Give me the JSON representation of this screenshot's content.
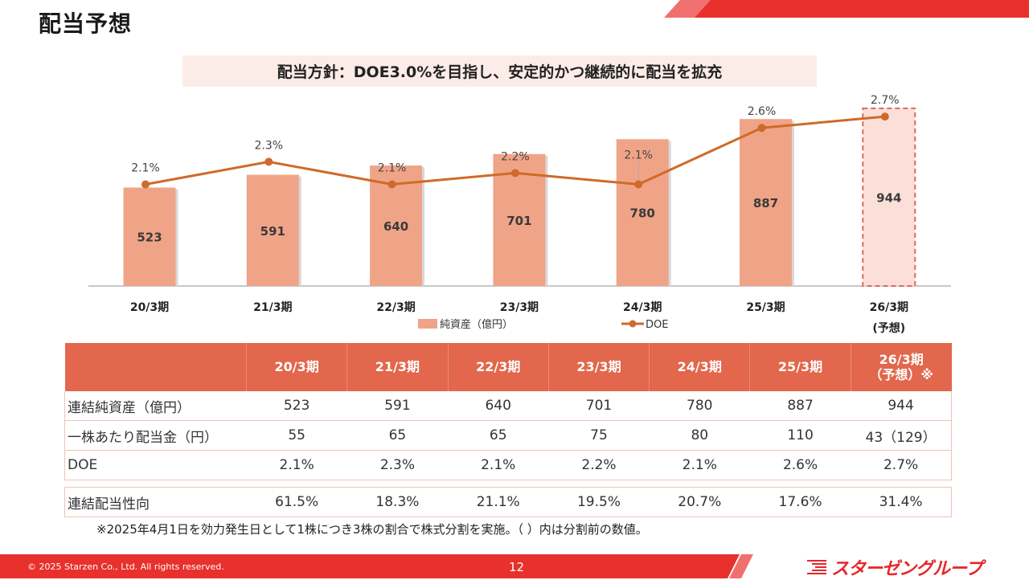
{
  "header": {
    "title": "配当予想",
    "policy": "配当方針：DOE3.0%を目指し、安定的かつ継続的に配当を拡充"
  },
  "colors": {
    "brand_red": "#e8302c",
    "brand_red_light": "#f07070",
    "bar": "#f0a487",
    "bar_forecast_fill": "#fbe0da",
    "bar_forecast_border": "#e06a55",
    "line": "#cf6a29",
    "table_header": "#e2674c"
  },
  "chart_data": {
    "type": "bar",
    "title": "",
    "categories": [
      "20/3期",
      "21/3期",
      "22/3期",
      "23/3期",
      "24/3期",
      "25/3期",
      "26/3期"
    ],
    "category_sublabels": [
      "",
      "",
      "",
      "",
      "",
      "",
      "(予想)"
    ],
    "series": [
      {
        "name": "純資産（億円）",
        "type": "bar",
        "axis": "left",
        "values": [
          523,
          591,
          640,
          701,
          780,
          887,
          944
        ],
        "forecast_index": 6
      },
      {
        "name": "DOE",
        "type": "line",
        "axis": "right",
        "unit": "%",
        "values": [
          2.1,
          2.3,
          2.1,
          2.2,
          2.1,
          2.6,
          2.7
        ],
        "labels": [
          "2.1%",
          "2.3%",
          "2.1%",
          "2.2%",
          "2.1%",
          "2.6%",
          "2.7%"
        ]
      }
    ],
    "xlabel": "",
    "ylabel": "",
    "ylim_left": [
      0,
      1050
    ],
    "ylim_right": [
      1.2,
      2.95
    ],
    "grid": false,
    "legend": "bottom-center",
    "legend_entries": [
      "純資産（億円）",
      "DOE"
    ]
  },
  "table": {
    "columns": [
      "",
      "20/3期",
      "21/3期",
      "22/3期",
      "23/3期",
      "24/3期",
      "25/3期",
      "26/3期"
    ],
    "last_column_sub": "（予想）※",
    "rows": [
      {
        "label": "連結純資産（億円）",
        "values": [
          "523",
          "591",
          "640",
          "701",
          "780",
          "887",
          "944"
        ]
      },
      {
        "label": "一株あたり配当金（円）",
        "values": [
          "55",
          "65",
          "65",
          "75",
          "80",
          "110",
          "43（129）"
        ]
      },
      {
        "label": "DOE",
        "values": [
          "2.1%",
          "2.3%",
          "2.1%",
          "2.2%",
          "2.1%",
          "2.6%",
          "2.7%"
        ]
      }
    ],
    "separate_row": {
      "label": "連結配当性向",
      "values": [
        "61.5%",
        "18.3%",
        "21.1%",
        "19.5%",
        "20.7%",
        "17.6%",
        "31.4%"
      ]
    }
  },
  "footnote": "※2025年4月1日を効力発生日として1株につき3株の割合で株式分割を実施。（ ）内は分割前の数値。",
  "footer": {
    "copyright": "© 2025 Starzen Co., Ltd. All rights reserved.",
    "page_number": "12",
    "logo_text": "スターゼングループ"
  }
}
